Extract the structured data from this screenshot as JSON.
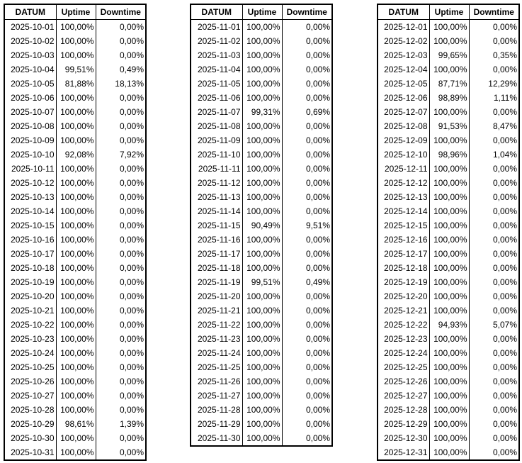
{
  "tables": [
    {
      "header": [
        "DATUM",
        "Uptime",
        "Downtime"
      ],
      "rows": [
        [
          "2025-10-01",
          "100,00%",
          "0,00%"
        ],
        [
          "2025-10-02",
          "100,00%",
          "0,00%"
        ],
        [
          "2025-10-03",
          "100,00%",
          "0,00%"
        ],
        [
          "2025-10-04",
          "99,51%",
          "0,49%"
        ],
        [
          "2025-10-05",
          "81,88%",
          "18,13%"
        ],
        [
          "2025-10-06",
          "100,00%",
          "0,00%"
        ],
        [
          "2025-10-07",
          "100,00%",
          "0,00%"
        ],
        [
          "2025-10-08",
          "100,00%",
          "0,00%"
        ],
        [
          "2025-10-09",
          "100,00%",
          "0,00%"
        ],
        [
          "2025-10-10",
          "92,08%",
          "7,92%"
        ],
        [
          "2025-10-11",
          "100,00%",
          "0,00%"
        ],
        [
          "2025-10-12",
          "100,00%",
          "0,00%"
        ],
        [
          "2025-10-13",
          "100,00%",
          "0,00%"
        ],
        [
          "2025-10-14",
          "100,00%",
          "0,00%"
        ],
        [
          "2025-10-15",
          "100,00%",
          "0,00%"
        ],
        [
          "2025-10-16",
          "100,00%",
          "0,00%"
        ],
        [
          "2025-10-17",
          "100,00%",
          "0,00%"
        ],
        [
          "2025-10-18",
          "100,00%",
          "0,00%"
        ],
        [
          "2025-10-19",
          "100,00%",
          "0,00%"
        ],
        [
          "2025-10-20",
          "100,00%",
          "0,00%"
        ],
        [
          "2025-10-21",
          "100,00%",
          "0,00%"
        ],
        [
          "2025-10-22",
          "100,00%",
          "0,00%"
        ],
        [
          "2025-10-23",
          "100,00%",
          "0,00%"
        ],
        [
          "2025-10-24",
          "100,00%",
          "0,00%"
        ],
        [
          "2025-10-25",
          "100,00%",
          "0,00%"
        ],
        [
          "2025-10-26",
          "100,00%",
          "0,00%"
        ],
        [
          "2025-10-27",
          "100,00%",
          "0,00%"
        ],
        [
          "2025-10-28",
          "100,00%",
          "0,00%"
        ],
        [
          "2025-10-29",
          "98,61%",
          "1,39%"
        ],
        [
          "2025-10-30",
          "100,00%",
          "0,00%"
        ],
        [
          "2025-10-31",
          "100,00%",
          "0,00%"
        ]
      ]
    },
    {
      "header": [
        "DATUM",
        "Uptime",
        "Downtime"
      ],
      "rows": [
        [
          "2025-11-01",
          "100,00%",
          "0,00%"
        ],
        [
          "2025-11-02",
          "100,00%",
          "0,00%"
        ],
        [
          "2025-11-03",
          "100,00%",
          "0,00%"
        ],
        [
          "2025-11-04",
          "100,00%",
          "0,00%"
        ],
        [
          "2025-11-05",
          "100,00%",
          "0,00%"
        ],
        [
          "2025-11-06",
          "100,00%",
          "0,00%"
        ],
        [
          "2025-11-07",
          "99,31%",
          "0,69%"
        ],
        [
          "2025-11-08",
          "100,00%",
          "0,00%"
        ],
        [
          "2025-11-09",
          "100,00%",
          "0,00%"
        ],
        [
          "2025-11-10",
          "100,00%",
          "0,00%"
        ],
        [
          "2025-11-11",
          "100,00%",
          "0,00%"
        ],
        [
          "2025-11-12",
          "100,00%",
          "0,00%"
        ],
        [
          "2025-11-13",
          "100,00%",
          "0,00%"
        ],
        [
          "2025-11-14",
          "100,00%",
          "0,00%"
        ],
        [
          "2025-11-15",
          "90,49%",
          "9,51%"
        ],
        [
          "2025-11-16",
          "100,00%",
          "0,00%"
        ],
        [
          "2025-11-17",
          "100,00%",
          "0,00%"
        ],
        [
          "2025-11-18",
          "100,00%",
          "0,00%"
        ],
        [
          "2025-11-19",
          "99,51%",
          "0,49%"
        ],
        [
          "2025-11-20",
          "100,00%",
          "0,00%"
        ],
        [
          "2025-11-21",
          "100,00%",
          "0,00%"
        ],
        [
          "2025-11-22",
          "100,00%",
          "0,00%"
        ],
        [
          "2025-11-23",
          "100,00%",
          "0,00%"
        ],
        [
          "2025-11-24",
          "100,00%",
          "0,00%"
        ],
        [
          "2025-11-25",
          "100,00%",
          "0,00%"
        ],
        [
          "2025-11-26",
          "100,00%",
          "0,00%"
        ],
        [
          "2025-11-27",
          "100,00%",
          "0,00%"
        ],
        [
          "2025-11-28",
          "100,00%",
          "0,00%"
        ],
        [
          "2025-11-29",
          "100,00%",
          "0,00%"
        ],
        [
          "2025-11-30",
          "100,00%",
          "0,00%"
        ]
      ]
    },
    {
      "header": [
        "DATUM",
        "Uptime",
        "Downtime"
      ],
      "rows": [
        [
          "2025-12-01",
          "100,00%",
          "0,00%"
        ],
        [
          "2025-12-02",
          "100,00%",
          "0,00%"
        ],
        [
          "2025-12-03",
          "99,65%",
          "0,35%"
        ],
        [
          "2025-12-04",
          "100,00%",
          "0,00%"
        ],
        [
          "2025-12-05",
          "87,71%",
          "12,29%"
        ],
        [
          "2025-12-06",
          "98,89%",
          "1,11%"
        ],
        [
          "2025-12-07",
          "100,00%",
          "0,00%"
        ],
        [
          "2025-12-08",
          "91,53%",
          "8,47%"
        ],
        [
          "2025-12-09",
          "100,00%",
          "0,00%"
        ],
        [
          "2025-12-10",
          "98,96%",
          "1,04%"
        ],
        [
          "2025-12-11",
          "100,00%",
          "0,00%"
        ],
        [
          "2025-12-12",
          "100,00%",
          "0,00%"
        ],
        [
          "2025-12-13",
          "100,00%",
          "0,00%"
        ],
        [
          "2025-12-14",
          "100,00%",
          "0,00%"
        ],
        [
          "2025-12-15",
          "100,00%",
          "0,00%"
        ],
        [
          "2025-12-16",
          "100,00%",
          "0,00%"
        ],
        [
          "2025-12-17",
          "100,00%",
          "0,00%"
        ],
        [
          "2025-12-18",
          "100,00%",
          "0,00%"
        ],
        [
          "2025-12-19",
          "100,00%",
          "0,00%"
        ],
        [
          "2025-12-20",
          "100,00%",
          "0,00%"
        ],
        [
          "2025-12-21",
          "100,00%",
          "0,00%"
        ],
        [
          "2025-12-22",
          "94,93%",
          "5,07%"
        ],
        [
          "2025-12-23",
          "100,00%",
          "0,00%"
        ],
        [
          "2025-12-24",
          "100,00%",
          "0,00%"
        ],
        [
          "2025-12-25",
          "100,00%",
          "0,00%"
        ],
        [
          "2025-12-26",
          "100,00%",
          "0,00%"
        ],
        [
          "2025-12-27",
          "100,00%",
          "0,00%"
        ],
        [
          "2025-12-28",
          "100,00%",
          "0,00%"
        ],
        [
          "2025-12-29",
          "100,00%",
          "0,00%"
        ],
        [
          "2025-12-30",
          "100,00%",
          "0,00%"
        ],
        [
          "2025-12-31",
          "100,00%",
          "0,00%"
        ]
      ]
    }
  ]
}
